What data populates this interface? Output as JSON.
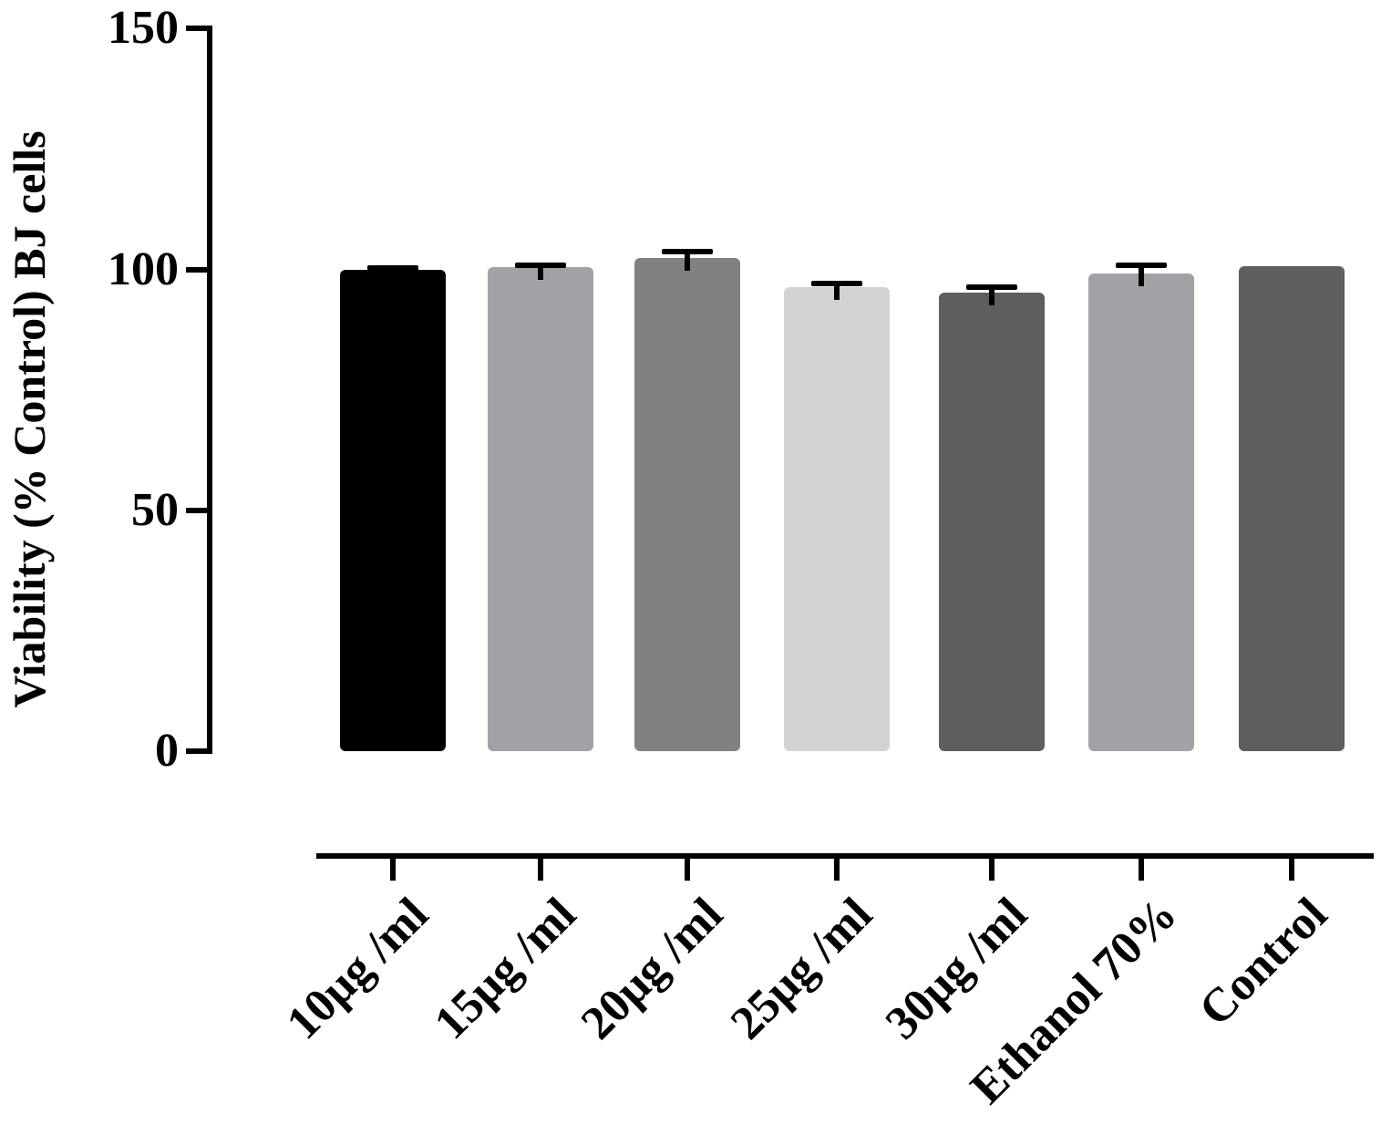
{
  "figure": {
    "background": "#ffffff",
    "text_color": "#000000"
  },
  "chart_data": {
    "type": "bar",
    "title": "",
    "xlabel": "",
    "ylabel": "Viability (% Control) BJ cells",
    "categories": [
      "10µg /ml",
      "15µg /ml",
      "20µg /ml",
      "25µg /ml",
      "30µg /ml",
      "Ethanol 70%",
      "Control"
    ],
    "values": [
      100.0,
      100.5,
      102.4,
      96.4,
      95.2,
      99.2,
      100.7
    ],
    "errors_upper": [
      0.8,
      0.9,
      1.9,
      1.2,
      1.6,
      2.2,
      0
    ],
    "bar_colors": [
      "#000000",
      "#a2a2a6",
      "#818181",
      "#d2d2d4",
      "#5e5e5e",
      "#a2a2a6",
      "#5e5e5e"
    ],
    "error_bar_color": "#000000",
    "axis_color": "#000000",
    "yticks": [
      0,
      50,
      100,
      150
    ],
    "ylim": [
      0,
      150
    ],
    "grid": false,
    "legend": "none",
    "x_tick_label_rotation_deg": 45
  }
}
